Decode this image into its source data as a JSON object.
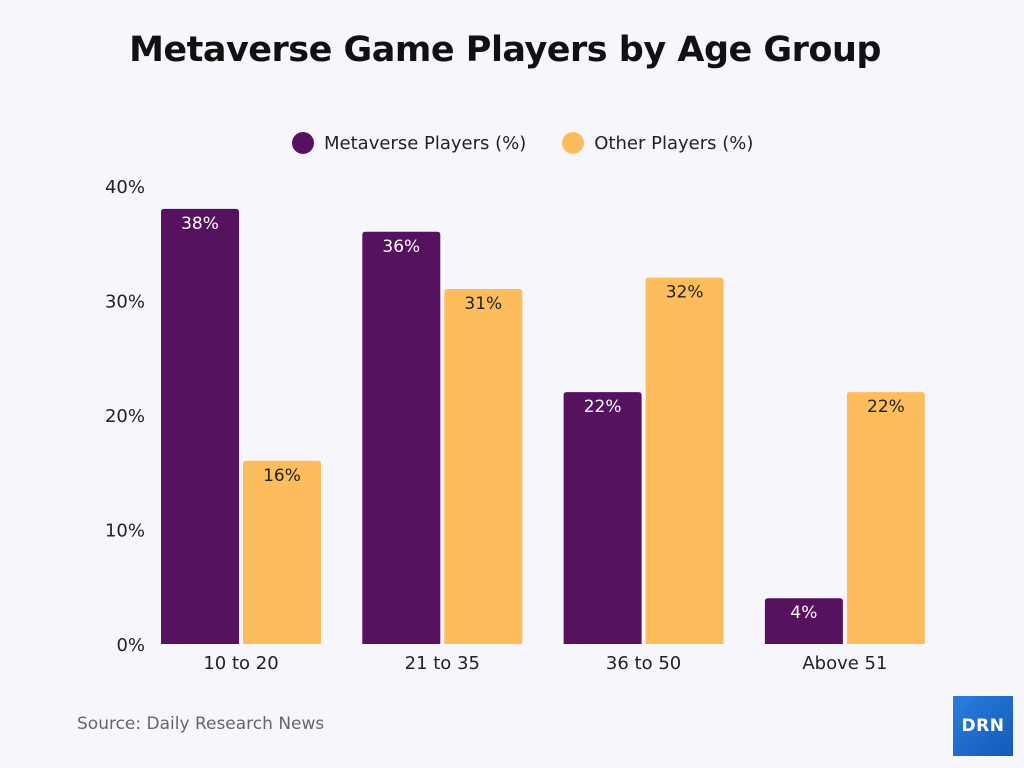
{
  "chart_data": {
    "type": "bar",
    "title": "Metaverse Game Players by Age Group",
    "categories": [
      "10 to 20",
      "21 to 35",
      "36 to 50",
      "Above 51"
    ],
    "series": [
      {
        "name": "Metaverse Players (%)",
        "values": [
          38,
          36,
          22,
          4
        ],
        "color": "#56125f"
      },
      {
        "name": "Other Players (%)",
        "values": [
          16,
          31,
          32,
          22
        ],
        "color": "#fdbd5c"
      }
    ],
    "ylim": [
      0,
      40
    ],
    "yticks": [
      "0%",
      "10%",
      "20%",
      "30%",
      "40%"
    ],
    "ytick_values": [
      0,
      10,
      20,
      30,
      40
    ],
    "grid": false,
    "legend": "top",
    "data_label_suffix": "%"
  },
  "source": "Source: Daily Research News",
  "logo": "DRN"
}
